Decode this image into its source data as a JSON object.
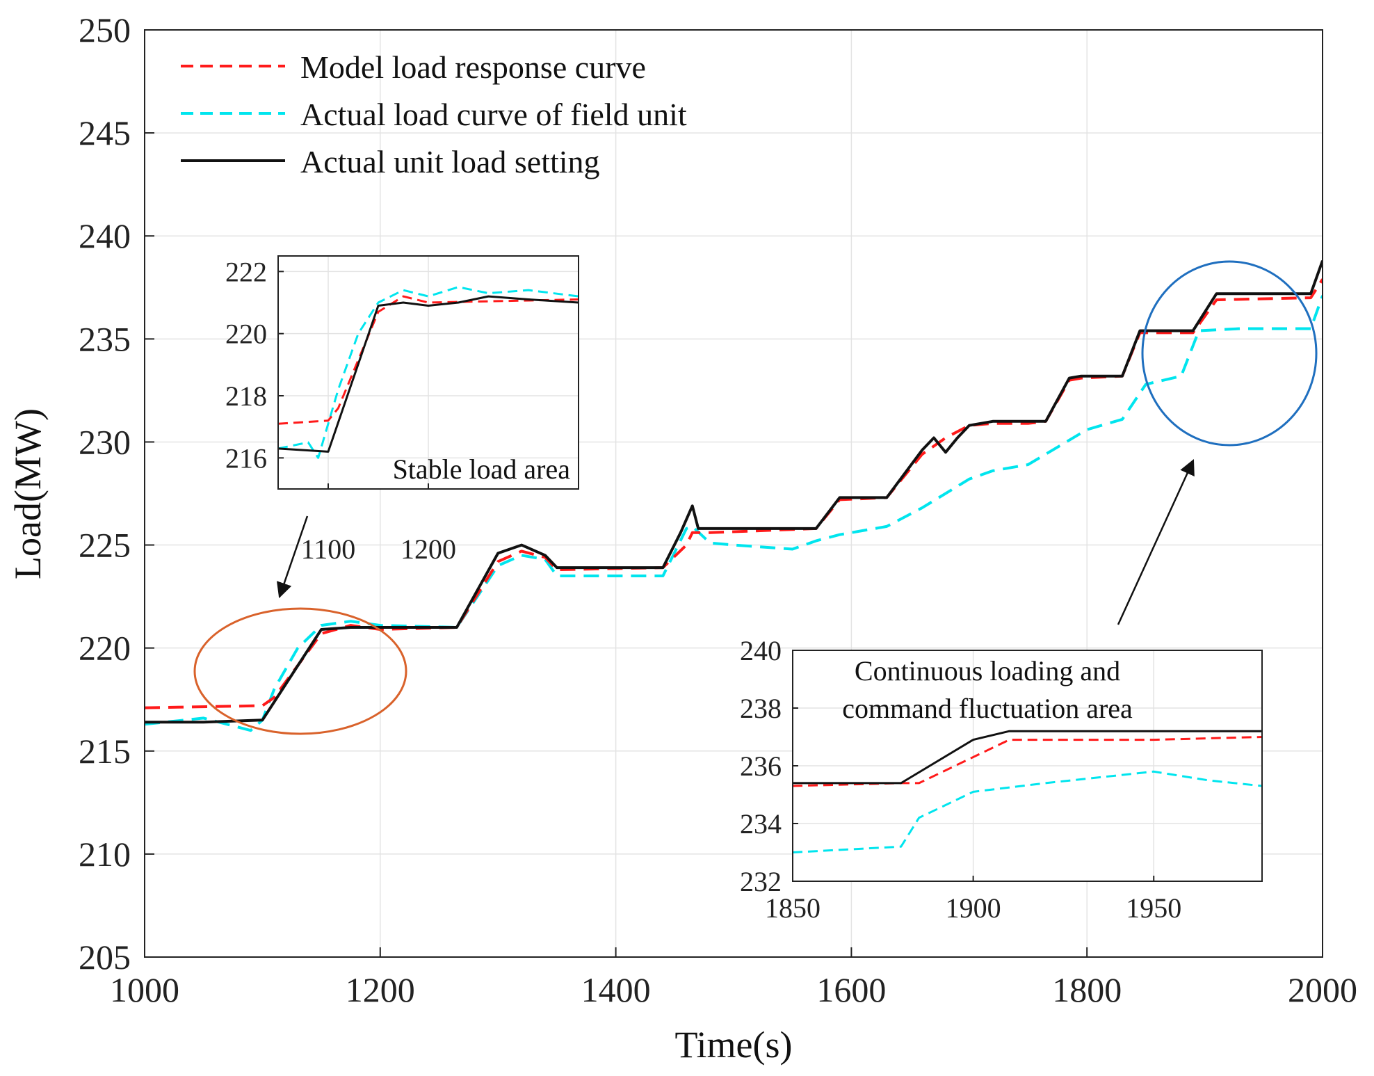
{
  "chart_data": [
    {
      "type": "line",
      "xlabel": "Time(s)",
      "ylabel": "Load(MW)",
      "xlim": [
        1000,
        2000
      ],
      "ylim": [
        205,
        250
      ],
      "xticks": [
        1000,
        1200,
        1400,
        1600,
        1800,
        2000
      ],
      "yticks": [
        205,
        210,
        215,
        220,
        225,
        230,
        235,
        240,
        245,
        250
      ],
      "grid": true,
      "legend_position": "top-left",
      "series": [
        {
          "name": "Model load response curve",
          "color": "#ff1a1a",
          "style": "dashed",
          "x": [
            1000,
            1100,
            1110,
            1150,
            1175,
            1200,
            1265,
            1300,
            1320,
            1340,
            1350,
            1440,
            1460,
            1465,
            1480,
            1570,
            1590,
            1630,
            1660,
            1670,
            1680,
            1700,
            1720,
            1750,
            1765,
            1785,
            1795,
            1830,
            1845,
            1890,
            1910,
            1990,
            2000
          ],
          "y": [
            217.1,
            217.2,
            217.6,
            220.7,
            221.1,
            220.9,
            221.0,
            224.2,
            224.7,
            224.4,
            223.8,
            223.9,
            225.0,
            225.6,
            225.6,
            225.8,
            227.2,
            227.3,
            229.4,
            229.8,
            230.2,
            230.8,
            230.9,
            230.9,
            231.0,
            233.0,
            233.1,
            233.2,
            235.3,
            235.3,
            236.9,
            237.0,
            237.9
          ]
        },
        {
          "name": "Actual load curve of field unit",
          "color": "#00e5ee",
          "style": "dashed",
          "x": [
            1000,
            1050,
            1090,
            1100,
            1110,
            1130,
            1150,
            1175,
            1200,
            1265,
            1300,
            1320,
            1340,
            1350,
            1440,
            1460,
            1465,
            1480,
            1500,
            1550,
            1570,
            1590,
            1630,
            1660,
            1700,
            1720,
            1750,
            1800,
            1830,
            1850,
            1880,
            1895,
            1930,
            1990,
            2000
          ],
          "y": [
            216.3,
            216.6,
            216.0,
            216.5,
            218.0,
            220.0,
            221.1,
            221.3,
            221.1,
            221.0,
            224.0,
            224.5,
            224.3,
            223.5,
            223.5,
            225.8,
            225.9,
            225.1,
            225.0,
            224.8,
            225.2,
            225.5,
            225.9,
            226.8,
            228.2,
            228.6,
            228.9,
            230.6,
            231.1,
            232.8,
            233.2,
            235.4,
            235.5,
            235.5,
            237.1
          ]
        },
        {
          "name": "Actual unit load setting",
          "color": "#111111",
          "style": "solid",
          "x": [
            1000,
            1050,
            1100,
            1150,
            1175,
            1200,
            1265,
            1300,
            1320,
            1340,
            1350,
            1440,
            1455,
            1465,
            1470,
            1480,
            1570,
            1590,
            1630,
            1660,
            1670,
            1680,
            1690,
            1700,
            1720,
            1750,
            1765,
            1785,
            1795,
            1830,
            1845,
            1870,
            1890,
            1910,
            1990,
            2000
          ],
          "y": [
            216.4,
            216.4,
            216.5,
            220.9,
            221.0,
            221.0,
            221.0,
            224.6,
            225.0,
            224.5,
            223.9,
            223.9,
            225.6,
            226.9,
            225.8,
            225.8,
            225.8,
            227.3,
            227.3,
            229.6,
            230.2,
            229.5,
            230.2,
            230.8,
            231.0,
            231.0,
            231.0,
            233.1,
            233.2,
            233.2,
            235.4,
            235.4,
            235.4,
            237.2,
            237.2,
            238.8
          ]
        }
      ]
    },
    {
      "type": "line",
      "title": "Stable load area",
      "xlim": [
        1050,
        1350
      ],
      "ylim": [
        215,
        222.5
      ],
      "xticks": [
        1100,
        1200
      ],
      "yticks": [
        216,
        218,
        220,
        222
      ],
      "grid": true,
      "series": [
        {
          "name": "Model load response curve",
          "x": [
            1050,
            1100,
            1110,
            1150,
            1175,
            1200,
            1350
          ],
          "y": [
            217.1,
            217.2,
            217.6,
            220.7,
            221.2,
            221.0,
            221.1
          ]
        },
        {
          "name": "Actual load curve of field unit",
          "x": [
            1050,
            1080,
            1090,
            1110,
            1130,
            1150,
            1175,
            1200,
            1230,
            1260,
            1300,
            1350
          ],
          "y": [
            216.3,
            216.5,
            216.0,
            218.2,
            220.0,
            221.0,
            221.4,
            221.2,
            221.5,
            221.3,
            221.4,
            221.2
          ]
        },
        {
          "name": "Actual unit load setting",
          "x": [
            1050,
            1100,
            1150,
            1175,
            1200,
            1230,
            1260,
            1300,
            1350
          ],
          "y": [
            216.3,
            216.2,
            220.9,
            221.0,
            220.9,
            221.0,
            221.2,
            221.1,
            221.0
          ]
        }
      ]
    },
    {
      "type": "line",
      "title": "Continuous loading and command fluctuation area",
      "xlim": [
        1850,
        1980
      ],
      "ylim": [
        232,
        240
      ],
      "xticks": [
        1850,
        1900,
        1950
      ],
      "yticks": [
        232,
        234,
        236,
        238,
        240
      ],
      "grid": true,
      "series": [
        {
          "name": "Model load response curve",
          "x": [
            1850,
            1880,
            1885,
            1910,
            1920,
            1950,
            1980
          ],
          "y": [
            235.3,
            235.4,
            235.4,
            236.9,
            236.9,
            236.9,
            237.0
          ]
        },
        {
          "name": "Actual load curve of field unit",
          "x": [
            1850,
            1880,
            1885,
            1890,
            1900,
            1920,
            1950,
            1965,
            1980
          ],
          "y": [
            233.0,
            233.2,
            234.2,
            234.5,
            235.1,
            235.4,
            235.8,
            235.5,
            235.3
          ]
        },
        {
          "name": "Actual unit load setting",
          "x": [
            1850,
            1880,
            1900,
            1910,
            1940,
            1980
          ],
          "y": [
            235.4,
            235.4,
            236.9,
            237.2,
            237.2,
            237.2
          ]
        }
      ]
    }
  ],
  "annotations": {
    "stable_area": "Stable load area",
    "fluct_area_line1": "Continuous loading and",
    "fluct_area_line2": "command fluctuation area"
  }
}
